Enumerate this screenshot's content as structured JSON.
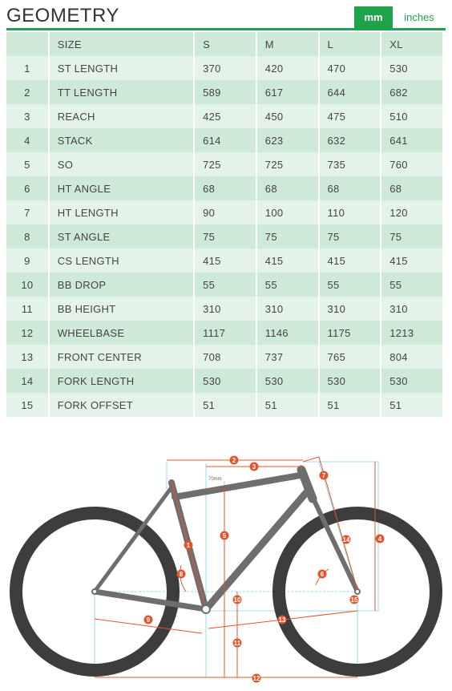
{
  "header": {
    "title": "GEOMETRY",
    "unit_mm": "mm",
    "unit_inches": "inches"
  },
  "table": {
    "headers": [
      "SIZE",
      "S",
      "M",
      "L",
      "XL"
    ],
    "rows": [
      {
        "n": "1",
        "label": "ST LENGTH",
        "values": [
          "370",
          "420",
          "470",
          "530"
        ]
      },
      {
        "n": "2",
        "label": "TT LENGTH",
        "values": [
          "589",
          "617",
          "644",
          "682"
        ]
      },
      {
        "n": "3",
        "label": "REACH",
        "values": [
          "425",
          "450",
          "475",
          "510"
        ]
      },
      {
        "n": "4",
        "label": "STACK",
        "values": [
          "614",
          "623",
          "632",
          "641"
        ]
      },
      {
        "n": "5",
        "label": "SO",
        "values": [
          "725",
          "725",
          "735",
          "760"
        ]
      },
      {
        "n": "6",
        "label": "HT ANGLE",
        "values": [
          "68",
          "68",
          "68",
          "68"
        ]
      },
      {
        "n": "7",
        "label": "HT LENGTH",
        "values": [
          "90",
          "100",
          "110",
          "120"
        ]
      },
      {
        "n": "8",
        "label": "ST ANGLE",
        "values": [
          "75",
          "75",
          "75",
          "75"
        ]
      },
      {
        "n": "9",
        "label": "CS LENGTH",
        "values": [
          "415",
          "415",
          "415",
          "415"
        ]
      },
      {
        "n": "10",
        "label": "BB DROP",
        "values": [
          "55",
          "55",
          "55",
          "55"
        ]
      },
      {
        "n": "11",
        "label": "BB HEIGHT",
        "values": [
          "310",
          "310",
          "310",
          "310"
        ]
      },
      {
        "n": "12",
        "label": "WHEELBASE",
        "values": [
          "1117",
          "1146",
          "1175",
          "1213"
        ]
      },
      {
        "n": "13",
        "label": "FRONT CENTER",
        "values": [
          "708",
          "737",
          "765",
          "804"
        ]
      },
      {
        "n": "14",
        "label": "FORK LENGTH",
        "values": [
          "530",
          "530",
          "530",
          "530"
        ]
      },
      {
        "n": "15",
        "label": "FORK OFFSET",
        "values": [
          "51",
          "51",
          "51",
          "51"
        ]
      }
    ]
  },
  "diagram": {
    "so_note": "70mm",
    "colors": {
      "frame": "#6e6e6e",
      "tire": "#3d3d3d",
      "measure": "#e2552b",
      "guide": "#7fd0e6",
      "accent": "#1fa34a"
    }
  }
}
